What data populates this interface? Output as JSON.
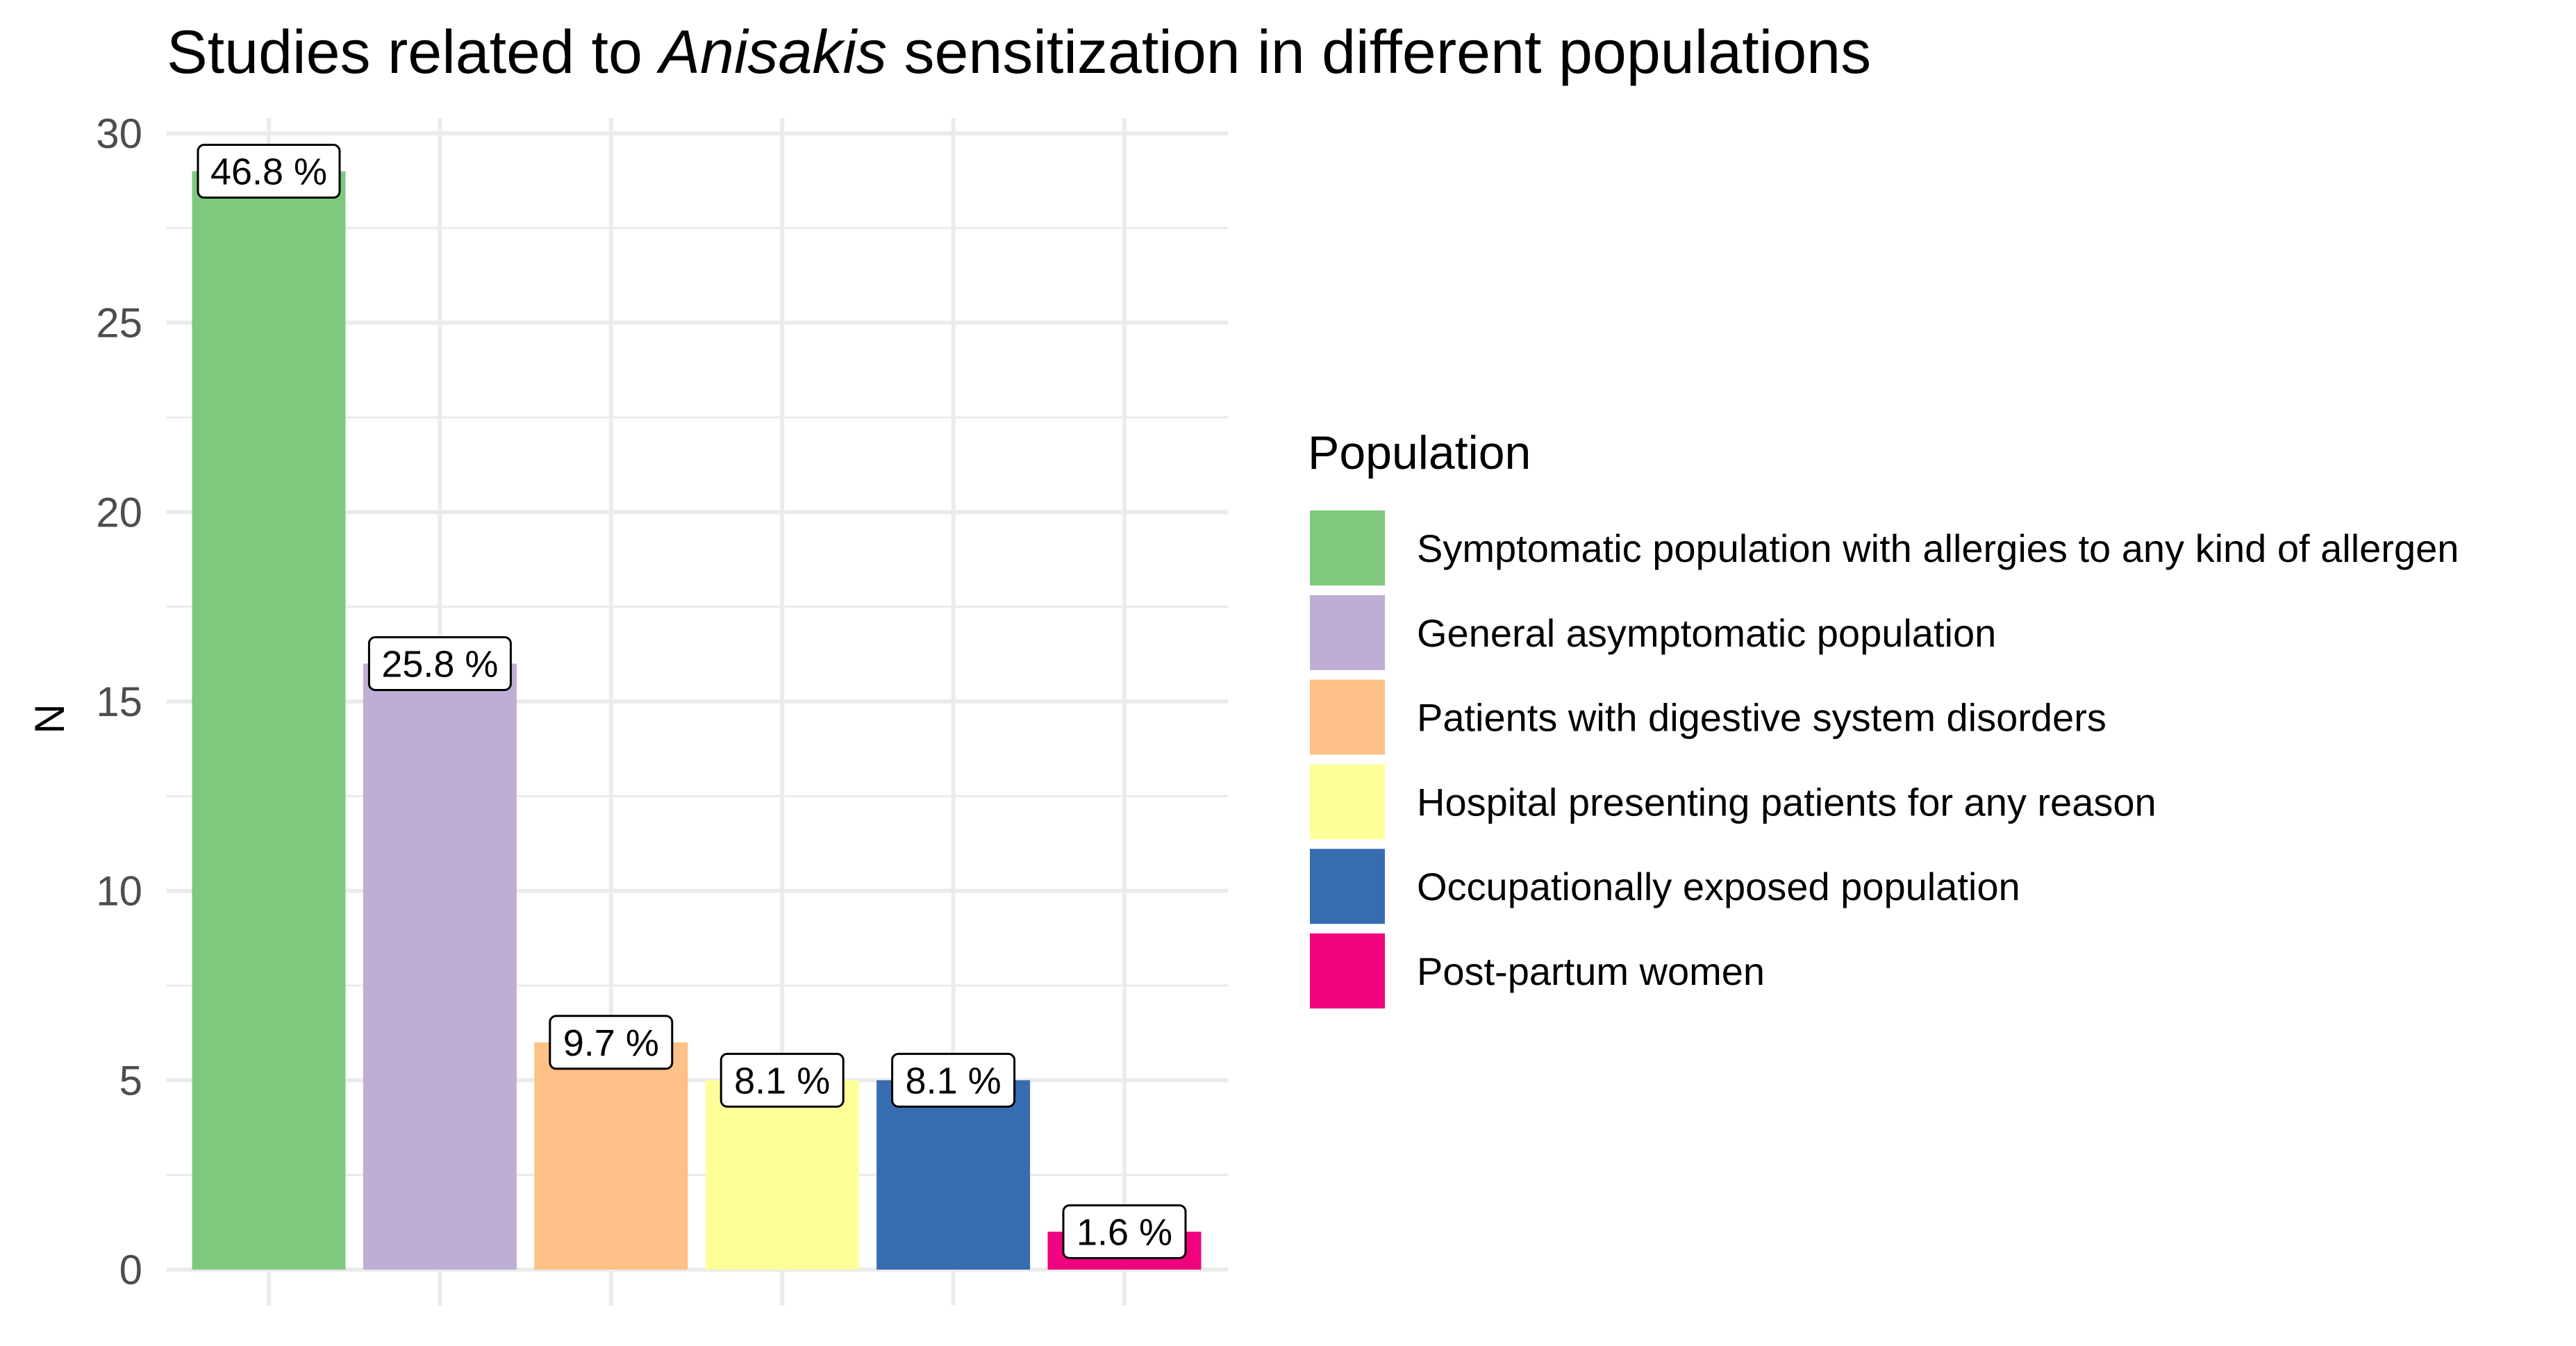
{
  "chart_data": {
    "type": "bar",
    "title_parts": [
      "Studies related to ",
      "Anisakis",
      " sensitization in different populations"
    ],
    "xlabel": "",
    "ylabel": "N",
    "ylim": [
      0,
      30
    ],
    "yticks": [
      "0",
      "5",
      "10",
      "15",
      "20",
      "25",
      "30"
    ],
    "categories": [
      "Symptomatic population with allergies to any kind of allergen",
      "General asymptomatic population",
      "Patients with digestive system disorders",
      "Hospital presenting patients for any reason",
      "Occupationally exposed population",
      "Post-partum women"
    ],
    "values": [
      29,
      16,
      6,
      5,
      5,
      1
    ],
    "labels": [
      "46.8 %",
      "25.8 %",
      "9.7 %",
      "8.1 %",
      "8.1 %",
      "1.6 %"
    ],
    "colors": [
      "#7fc97f",
      "#beaed4",
      "#fdc086",
      "#ffff99",
      "#386cb0",
      "#f0027f"
    ],
    "legend": {
      "title": "Population",
      "position": "right"
    }
  }
}
